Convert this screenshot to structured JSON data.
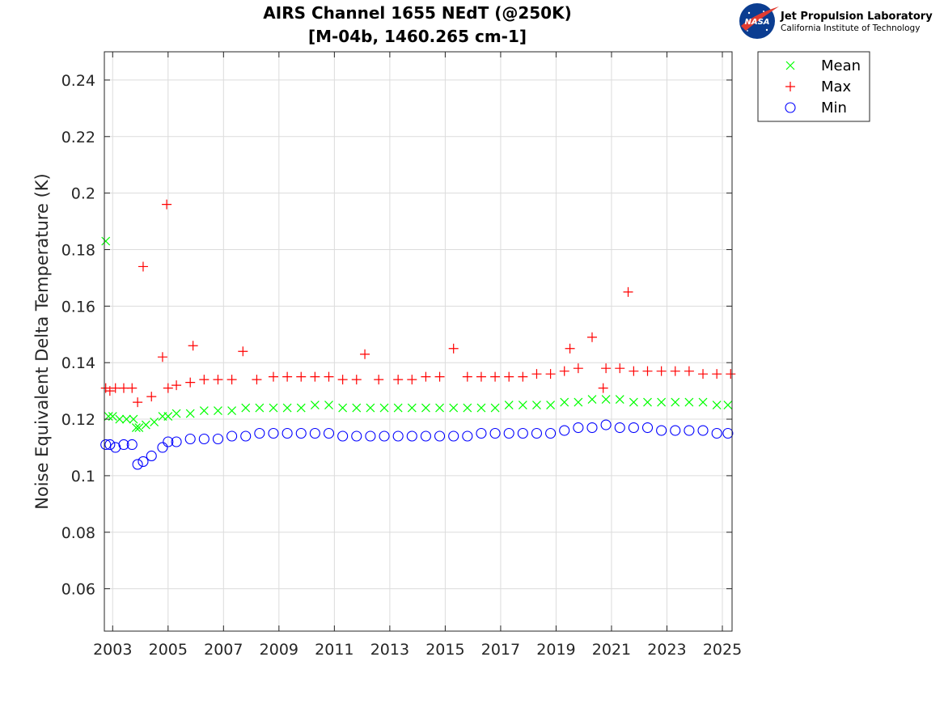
{
  "logo": {
    "nasa_text": "NASA",
    "line1": "Jet Propulsion Laboratory",
    "line2": "California Institute of Technology"
  },
  "chart_data": {
    "type": "scatter",
    "title": "AIRS Channel 1655 NEdT (@250K)",
    "subtitle": "[M-04b, 1460.265 cm-1]",
    "xlabel": "",
    "ylabel": "Noise Equivalent Delta Temperature (K)",
    "xlim": [
      2002.7,
      2025.35
    ],
    "ylim": [
      0.045,
      0.25
    ],
    "xticks": [
      2003,
      2005,
      2007,
      2009,
      2011,
      2013,
      2015,
      2017,
      2019,
      2021,
      2023,
      2025
    ],
    "yticks": [
      0.06,
      0.08,
      0.1,
      0.12,
      0.14,
      0.16,
      0.18,
      0.2,
      0.22,
      0.24
    ],
    "ytick_labels": [
      "0.06",
      "0.08",
      "0.1",
      "0.12",
      "0.14",
      "0.16",
      "0.18",
      "0.2",
      "0.22",
      "0.24"
    ],
    "grid": true,
    "legend_position": "outside-top-right",
    "series": [
      {
        "name": "Mean",
        "marker": "x",
        "color": "#00ff00",
        "x": [
          2002.75,
          2002.85,
          2003.0,
          2003.25,
          2003.5,
          2003.75,
          2003.85,
          2003.95,
          2004.2,
          2004.5,
          2004.8,
          2005.0,
          2005.3,
          2005.8,
          2006.3,
          2006.8,
          2007.3,
          2007.8,
          2008.3,
          2008.8,
          2009.3,
          2009.8,
          2010.3,
          2010.8,
          2011.3,
          2011.8,
          2012.3,
          2012.8,
          2013.3,
          2013.8,
          2014.3,
          2014.8,
          2015.3,
          2015.8,
          2016.3,
          2016.8,
          2017.3,
          2017.8,
          2018.3,
          2018.8,
          2019.3,
          2019.8,
          2020.3,
          2020.8,
          2021.3,
          2021.8,
          2022.3,
          2022.8,
          2023.3,
          2023.8,
          2024.3,
          2024.8,
          2025.2
        ],
        "y": [
          0.183,
          0.121,
          0.121,
          0.12,
          0.12,
          0.12,
          0.117,
          0.117,
          0.118,
          0.119,
          0.121,
          0.121,
          0.122,
          0.122,
          0.123,
          0.123,
          0.123,
          0.124,
          0.124,
          0.124,
          0.124,
          0.124,
          0.125,
          0.125,
          0.124,
          0.124,
          0.124,
          0.124,
          0.124,
          0.124,
          0.124,
          0.124,
          0.124,
          0.124,
          0.124,
          0.124,
          0.125,
          0.125,
          0.125,
          0.125,
          0.126,
          0.126,
          0.127,
          0.127,
          0.127,
          0.126,
          0.126,
          0.126,
          0.126,
          0.126,
          0.126,
          0.125,
          0.125
        ]
      },
      {
        "name": "Max",
        "marker": "+",
        "color": "#ff0000",
        "x": [
          2002.75,
          2002.9,
          2003.1,
          2003.4,
          2003.7,
          2003.9,
          2004.1,
          2004.4,
          2004.8,
          2004.95,
          2005.0,
          2005.3,
          2005.8,
          2005.9,
          2006.3,
          2006.8,
          2007.3,
          2007.7,
          2008.2,
          2008.8,
          2009.3,
          2009.8,
          2010.3,
          2010.8,
          2011.3,
          2011.8,
          2012.1,
          2012.6,
          2013.3,
          2013.8,
          2014.3,
          2014.8,
          2015.3,
          2015.8,
          2016.3,
          2016.8,
          2017.3,
          2017.8,
          2018.3,
          2018.8,
          2019.3,
          2019.5,
          2019.8,
          2020.3,
          2020.7,
          2020.8,
          2021.3,
          2021.6,
          2021.8,
          2022.3,
          2022.8,
          2023.3,
          2023.8,
          2024.3,
          2024.8,
          2025.3
        ],
        "y": [
          0.131,
          0.13,
          0.131,
          0.131,
          0.131,
          0.126,
          0.174,
          0.128,
          0.142,
          0.196,
          0.131,
          0.132,
          0.133,
          0.146,
          0.134,
          0.134,
          0.134,
          0.144,
          0.134,
          0.135,
          0.135,
          0.135,
          0.135,
          0.135,
          0.134,
          0.134,
          0.143,
          0.134,
          0.134,
          0.134,
          0.135,
          0.135,
          0.145,
          0.135,
          0.135,
          0.135,
          0.135,
          0.135,
          0.136,
          0.136,
          0.137,
          0.145,
          0.138,
          0.149,
          0.131,
          0.138,
          0.138,
          0.165,
          0.137,
          0.137,
          0.137,
          0.137,
          0.137,
          0.136,
          0.136,
          0.136
        ]
      },
      {
        "name": "Min",
        "marker": "o",
        "color": "#0000ff",
        "x": [
          2002.75,
          2002.9,
          2003.1,
          2003.4,
          2003.7,
          2003.9,
          2004.1,
          2004.4,
          2004.8,
          2005.0,
          2005.3,
          2005.8,
          2006.3,
          2006.8,
          2007.3,
          2007.8,
          2008.3,
          2008.8,
          2009.3,
          2009.8,
          2010.3,
          2010.8,
          2011.3,
          2011.8,
          2012.3,
          2012.8,
          2013.3,
          2013.8,
          2014.3,
          2014.8,
          2015.3,
          2015.8,
          2016.3,
          2016.8,
          2017.3,
          2017.8,
          2018.3,
          2018.8,
          2019.3,
          2019.8,
          2020.3,
          2020.8,
          2021.3,
          2021.8,
          2022.3,
          2022.8,
          2023.3,
          2023.8,
          2024.3,
          2024.8,
          2025.2
        ],
        "y": [
          0.111,
          0.111,
          0.11,
          0.111,
          0.111,
          0.104,
          0.105,
          0.107,
          0.11,
          0.112,
          0.112,
          0.113,
          0.113,
          0.113,
          0.114,
          0.114,
          0.115,
          0.115,
          0.115,
          0.115,
          0.115,
          0.115,
          0.114,
          0.114,
          0.114,
          0.114,
          0.114,
          0.114,
          0.114,
          0.114,
          0.114,
          0.114,
          0.115,
          0.115,
          0.115,
          0.115,
          0.115,
          0.115,
          0.116,
          0.117,
          0.117,
          0.118,
          0.117,
          0.117,
          0.117,
          0.116,
          0.116,
          0.116,
          0.116,
          0.115,
          0.115
        ]
      }
    ]
  }
}
